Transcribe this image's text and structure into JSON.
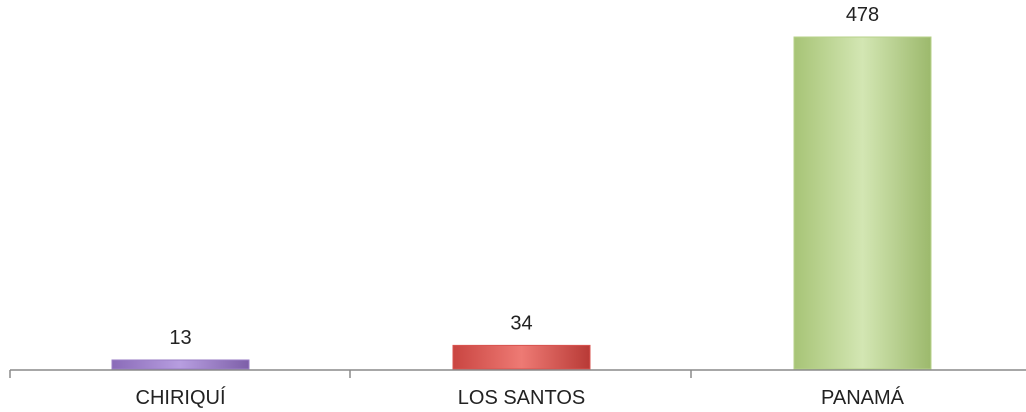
{
  "chart_data": {
    "type": "bar",
    "categories": [
      "CHIRIQUÍ",
      "LOS SANTOS",
      "PANAMÁ"
    ],
    "values": [
      13,
      34,
      478
    ],
    "data_labels": [
      "13",
      "34",
      "478"
    ],
    "colors": [
      "#9b7fc6",
      "#d9534f",
      "#b7d28a"
    ],
    "title": "",
    "xlabel": "",
    "ylabel": "",
    "ylim": [
      0,
      478
    ],
    "grid": false,
    "legend": "none"
  }
}
